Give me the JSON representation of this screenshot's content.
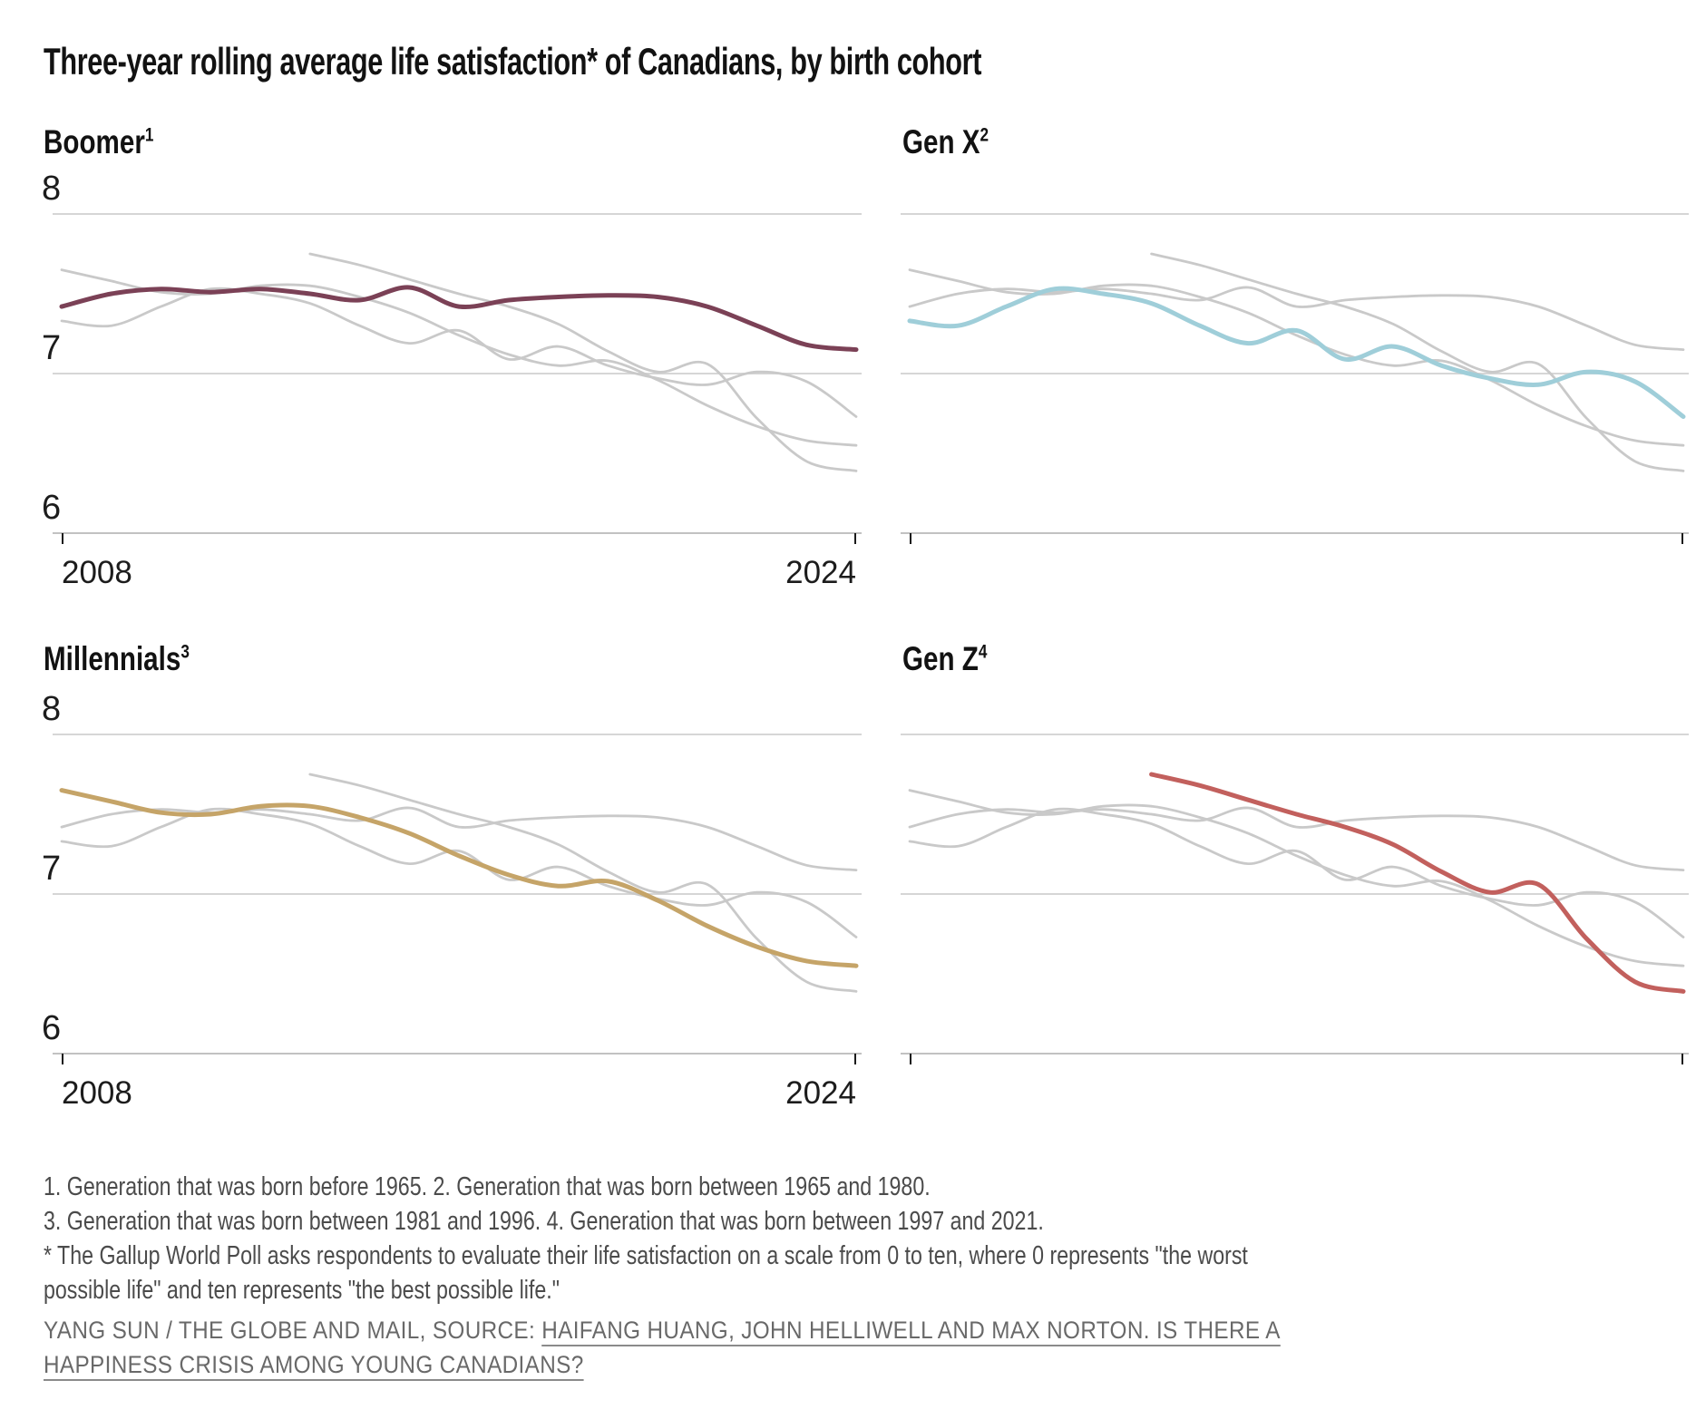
{
  "title": "Three-year rolling average life satisfaction* of Canadians, by birth cohort",
  "chart_data": {
    "type": "line",
    "x_range": [
      2008,
      2024
    ],
    "ylim": [
      6,
      8
    ],
    "yticks": [
      8,
      7,
      6
    ],
    "ytick_labels": [
      "8",
      "7",
      "6"
    ],
    "xtick_labels": [
      "2008",
      "2024"
    ],
    "grid": "horizontal gridlines at 8, 7, 6; y labels and x labels shown on left-column panels only",
    "colors": {
      "boomer": "#7b4156",
      "gen_x": "#9fced9",
      "millennials": "#c5a468",
      "gen_z": "#c2605d",
      "background_series": "#c9c9c9",
      "gridline": "#d6d6d6",
      "axis_line": "#c2c2c2",
      "tick": "#1a1a1a"
    },
    "series": [
      {
        "name": "Boomer",
        "color": "#7b4156",
        "x_start": 2008,
        "values": [
          7.42,
          7.5,
          7.53,
          7.51,
          7.53,
          7.5,
          7.46,
          7.54,
          7.42,
          7.46,
          7.48,
          7.49,
          7.48,
          7.42,
          7.3,
          7.18,
          7.15
        ]
      },
      {
        "name": "Gen X",
        "color": "#9fced9",
        "x_start": 2008,
        "values": [
          7.33,
          7.3,
          7.42,
          7.53,
          7.5,
          7.44,
          7.3,
          7.19,
          7.27,
          7.09,
          7.17,
          7.05,
          6.97,
          6.93,
          7.01,
          6.95,
          6.73
        ]
      },
      {
        "name": "Millennials",
        "color": "#c5a468",
        "x_start": 2008,
        "values": [
          7.65,
          7.58,
          7.51,
          7.5,
          7.55,
          7.55,
          7.48,
          7.38,
          7.24,
          7.12,
          7.05,
          7.08,
          6.96,
          6.8,
          6.67,
          6.58,
          6.55
        ]
      },
      {
        "name": "Gen Z",
        "color": "#c2605d",
        "x_start": 2013,
        "values": [
          7.75,
          7.68,
          7.59,
          7.5,
          7.42,
          7.31,
          7.14,
          7.01,
          7.06,
          6.72,
          6.45,
          6.39
        ]
      }
    ],
    "panels": [
      {
        "title": "Boomer",
        "sup": "1",
        "highlight": "Boomer",
        "y_labels": true,
        "x_labels": true
      },
      {
        "title": "Gen X",
        "sup": "2",
        "highlight": "Gen X",
        "y_labels": false,
        "x_labels": false
      },
      {
        "title": "Millennials",
        "sup": "3",
        "highlight": "Millennials",
        "y_labels": true,
        "x_labels": true
      },
      {
        "title": "Gen Z",
        "sup": "4",
        "highlight": "Gen Z",
        "y_labels": false,
        "x_labels": false
      }
    ]
  },
  "footnotes": [
    "1. Generation that was born before 1965. 2. Generation that was born between 1965 and 1980.",
    "3. Generation that was born between 1981 and 1996. 4. Generation that was born between 1997 and 2021.",
    "* The Gallup World Poll asks respondents to evaluate their life satisfaction on a scale from 0 to ten, where 0 represents \"the worst",
    "possible life\" and ten represents \"the best possible life.\""
  ],
  "credit": {
    "prefix": "YANG SUN / THE GLOBE AND MAIL, SOURCE: ",
    "link_line1": "HAIFANG HUANG, JOHN HELLIWELL AND MAX NORTON. IS THERE A",
    "link_line2": "HAPPINESS CRISIS AMONG YOUNG CANADIANS?"
  }
}
